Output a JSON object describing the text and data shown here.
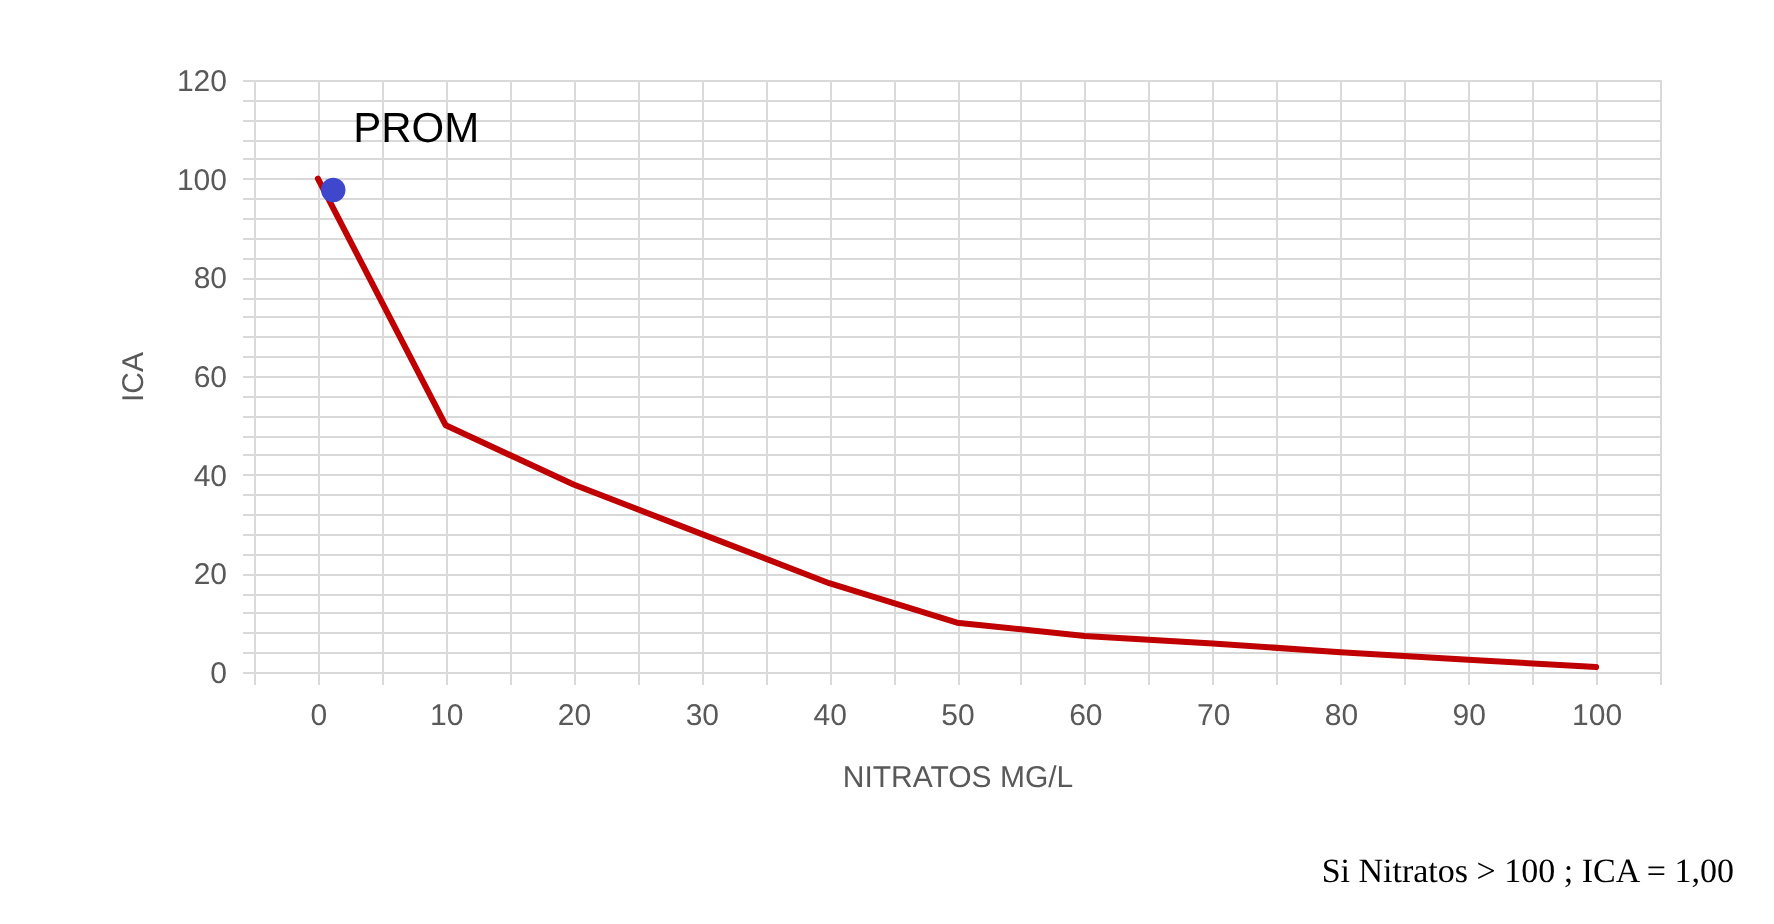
{
  "chart_data": {
    "type": "line",
    "xlabel": "NITRATOS MG/L",
    "ylabel": "ICA",
    "xlim": [
      -5,
      105
    ],
    "ylim": [
      0,
      120
    ],
    "xticks": [
      {
        "value": -5,
        "label": null
      },
      0,
      {
        "value": 5,
        "label": null
      },
      10,
      {
        "value": 15,
        "label": null
      },
      20,
      {
        "value": 25,
        "label": null
      },
      30,
      {
        "value": 35,
        "label": null
      },
      40,
      {
        "value": 45,
        "label": null
      },
      50,
      {
        "value": 55,
        "label": null
      },
      60,
      {
        "value": 65,
        "label": null
      },
      70,
      {
        "value": 75,
        "label": null
      },
      80,
      {
        "value": 85,
        "label": null
      },
      90,
      {
        "value": 95,
        "label": null
      },
      100,
      {
        "value": 105,
        "label": null
      }
    ],
    "yticks": [
      0,
      {
        "value": 4,
        "label": null
      },
      {
        "value": 8,
        "label": null
      },
      {
        "value": 12,
        "label": null
      },
      {
        "value": 16,
        "label": null
      },
      20,
      {
        "value": 24,
        "label": null
      },
      {
        "value": 28,
        "label": null
      },
      {
        "value": 32,
        "label": null
      },
      {
        "value": 36,
        "label": null
      },
      40,
      {
        "value": 44,
        "label": null
      },
      {
        "value": 48,
        "label": null
      },
      {
        "value": 52,
        "label": null
      },
      {
        "value": 56,
        "label": null
      },
      60,
      {
        "value": 64,
        "label": null
      },
      {
        "value": 68,
        "label": null
      },
      {
        "value": 72,
        "label": null
      },
      {
        "value": 76,
        "label": null
      },
      80,
      {
        "value": 84,
        "label": null
      },
      {
        "value": 88,
        "label": null
      },
      {
        "value": 92,
        "label": null
      },
      {
        "value": 96,
        "label": null
      },
      100,
      {
        "value": 104,
        "label": null
      },
      {
        "value": 108,
        "label": null
      },
      {
        "value": 112,
        "label": null
      },
      {
        "value": 116,
        "label": null
      },
      120
    ],
    "grid": true,
    "legend": false,
    "series": [
      {
        "type": "line",
        "color": "#c00000",
        "x": [
          0,
          10,
          20,
          30,
          40,
          50,
          60,
          70,
          80,
          90,
          100
        ],
        "values": [
          100,
          50,
          38,
          28,
          18,
          10,
          7.3,
          5.8,
          4,
          2.5,
          1
        ]
      },
      {
        "type": "scatter",
        "name": "PROM",
        "color": "#3f48cc",
        "marker": "circle",
        "x": [
          1.2
        ],
        "values": [
          97.7
        ]
      }
    ],
    "annotations": [
      "Si Nitratos > 100 ; ICA = 1,00"
    ]
  }
}
